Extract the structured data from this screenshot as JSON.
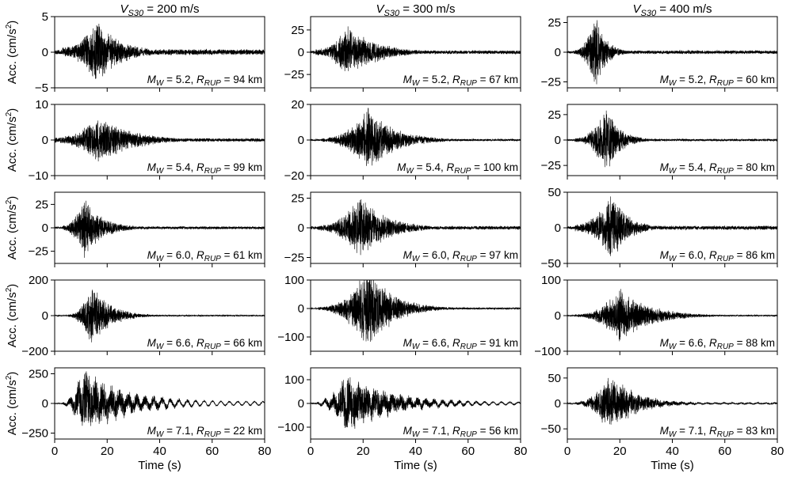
{
  "chart_data": {
    "type": "line",
    "layout_grid": "5 rows x 3 columns of acceleration time series",
    "line_color": "#000000",
    "column_titles": [
      {
        "vs": "V",
        "sub": "S30",
        "rest": " = 200 m/s"
      },
      {
        "vs": "V",
        "sub": "S30",
        "rest": " = 300 m/s"
      },
      {
        "vs": "V",
        "sub": "S30",
        "rest": " = 400 m/s"
      }
    ],
    "ylabel": {
      "prefix": "Acc. (cm/s",
      "sup": "2",
      "suffix": ")"
    },
    "xlabel": "Time (s)",
    "xlim": [
      0,
      80
    ],
    "xticks": [
      0,
      20,
      40,
      60,
      80
    ],
    "panels": [
      {
        "row": 0,
        "col": 0,
        "ylim": [
          -5,
          5
        ],
        "yticks": [
          -5,
          0,
          5
        ],
        "mw": "5.2",
        "rrup": "94 km",
        "peak": 4.0,
        "onset": 3,
        "t_peak": 16,
        "rise": 2,
        "decay": 9,
        "pre": 0.15,
        "long_period": 0
      },
      {
        "row": 0,
        "col": 1,
        "ylim": [
          -40,
          40
        ],
        "yticks": [
          -25,
          0,
          25
        ],
        "mw": "5.2",
        "rrup": "67 km",
        "peak": 29,
        "onset": 2,
        "t_peak": 14,
        "rise": 4,
        "decay": 11,
        "pre": 0.12,
        "long_period": 0
      },
      {
        "row": 0,
        "col": 2,
        "ylim": [
          -30,
          30
        ],
        "yticks": [
          -25,
          0,
          25
        ],
        "mw": "5.2",
        "rrup": "60 km",
        "peak": 27,
        "onset": 3,
        "t_peak": 10.5,
        "rise": 0.6,
        "decay": 4,
        "pre": 0.08,
        "long_period": 0
      },
      {
        "row": 1,
        "col": 0,
        "ylim": [
          -10,
          10
        ],
        "yticks": [
          -10,
          0,
          10
        ],
        "mw": "5.4",
        "rrup": "99 km",
        "peak": 6,
        "onset": 0,
        "t_peak": 17,
        "rise": 1.5,
        "decay": 12,
        "pre": 0.12,
        "long_period": 0
      },
      {
        "row": 1,
        "col": 1,
        "ylim": [
          -20,
          20
        ],
        "yticks": [
          -20,
          0,
          20
        ],
        "mw": "5.4",
        "rrup": "100 km",
        "peak": 18,
        "onset": 4,
        "t_peak": 22,
        "rise": 7,
        "decay": 10,
        "pre": 0.06,
        "long_period": 0
      },
      {
        "row": 1,
        "col": 2,
        "ylim": [
          -35,
          35
        ],
        "yticks": [
          -25,
          0,
          25
        ],
        "mw": "5.4",
        "rrup": "80 km",
        "peak": 29,
        "onset": 3,
        "t_peak": 15,
        "rise": 1.5,
        "decay": 5,
        "pre": 0.06,
        "long_period": 0
      },
      {
        "row": 2,
        "col": 0,
        "ylim": [
          -38,
          38
        ],
        "yticks": [
          -25,
          0,
          25
        ],
        "mw": "6.0",
        "rrup": "61 km",
        "peak": 32,
        "onset": 3,
        "t_peak": 11,
        "rise": 3,
        "decay": 7,
        "pre": 0.08,
        "long_period": 0
      },
      {
        "row": 2,
        "col": 1,
        "ylim": [
          -30,
          30
        ],
        "yticks": [
          -25,
          0,
          25
        ],
        "mw": "6.0",
        "rrup": "97 km",
        "peak": 24,
        "onset": 3,
        "t_peak": 19,
        "rise": 4,
        "decay": 10,
        "pre": 0.1,
        "long_period": 0
      },
      {
        "row": 2,
        "col": 2,
        "ylim": [
          -50,
          50
        ],
        "yticks": [
          -50,
          0,
          50
        ],
        "mw": "6.0",
        "rrup": "86 km",
        "peak": 44,
        "onset": 3,
        "t_peak": 17,
        "rise": 2,
        "decay": 6,
        "pre": 0.1,
        "long_period": 0
      },
      {
        "row": 3,
        "col": 0,
        "ylim": [
          -200,
          200
        ],
        "yticks": [
          -200,
          0,
          200
        ],
        "mw": "6.6",
        "rrup": "66 km",
        "peak": 150,
        "onset": 5,
        "t_peak": 14,
        "rise": 4,
        "decay": 7,
        "pre": 0.04,
        "long_period": 0
      },
      {
        "row": 3,
        "col": 1,
        "ylim": [
          -150,
          100
        ],
        "yticks": [
          -100,
          0,
          100
        ],
        "mw": "6.6",
        "rrup": "91 km",
        "peak": 140,
        "onset": 3,
        "t_peak": 22,
        "rise": 7,
        "decay": 9,
        "pre": 0.04,
        "long_period": 0
      },
      {
        "row": 3,
        "col": 2,
        "ylim": [
          -100,
          100
        ],
        "yticks": [
          -100,
          0,
          100
        ],
        "mw": "6.6",
        "rrup": "88 km",
        "peak": 75,
        "onset": 3,
        "t_peak": 20,
        "rise": 8,
        "decay": 11,
        "pre": 0.05,
        "long_period": 0
      },
      {
        "row": 4,
        "col": 0,
        "ylim": [
          -300,
          300
        ],
        "yticks": [
          -250,
          0,
          250
        ],
        "mw": "7.1",
        "rrup": "22 km",
        "peak": 270,
        "onset": 3,
        "t_peak": 11,
        "rise": 3,
        "decay": 14,
        "pre": 0.04,
        "long_period": 0.55
      },
      {
        "row": 4,
        "col": 1,
        "ylim": [
          -150,
          150
        ],
        "yticks": [
          -100,
          0,
          100
        ],
        "mw": "7.1",
        "rrup": "56 km",
        "peak": 110,
        "onset": 2,
        "t_peak": 14,
        "rise": 6,
        "decay": 16,
        "pre": 0.05,
        "long_period": 0.4
      },
      {
        "row": 4,
        "col": 2,
        "ylim": [
          -70,
          70
        ],
        "yticks": [
          -50,
          0,
          50
        ],
        "mw": "7.1",
        "rrup": "83 km",
        "peak": 50,
        "onset": 3,
        "t_peak": 16,
        "rise": 4,
        "decay": 10,
        "pre": 0.05,
        "long_period": 0.15
      }
    ]
  }
}
